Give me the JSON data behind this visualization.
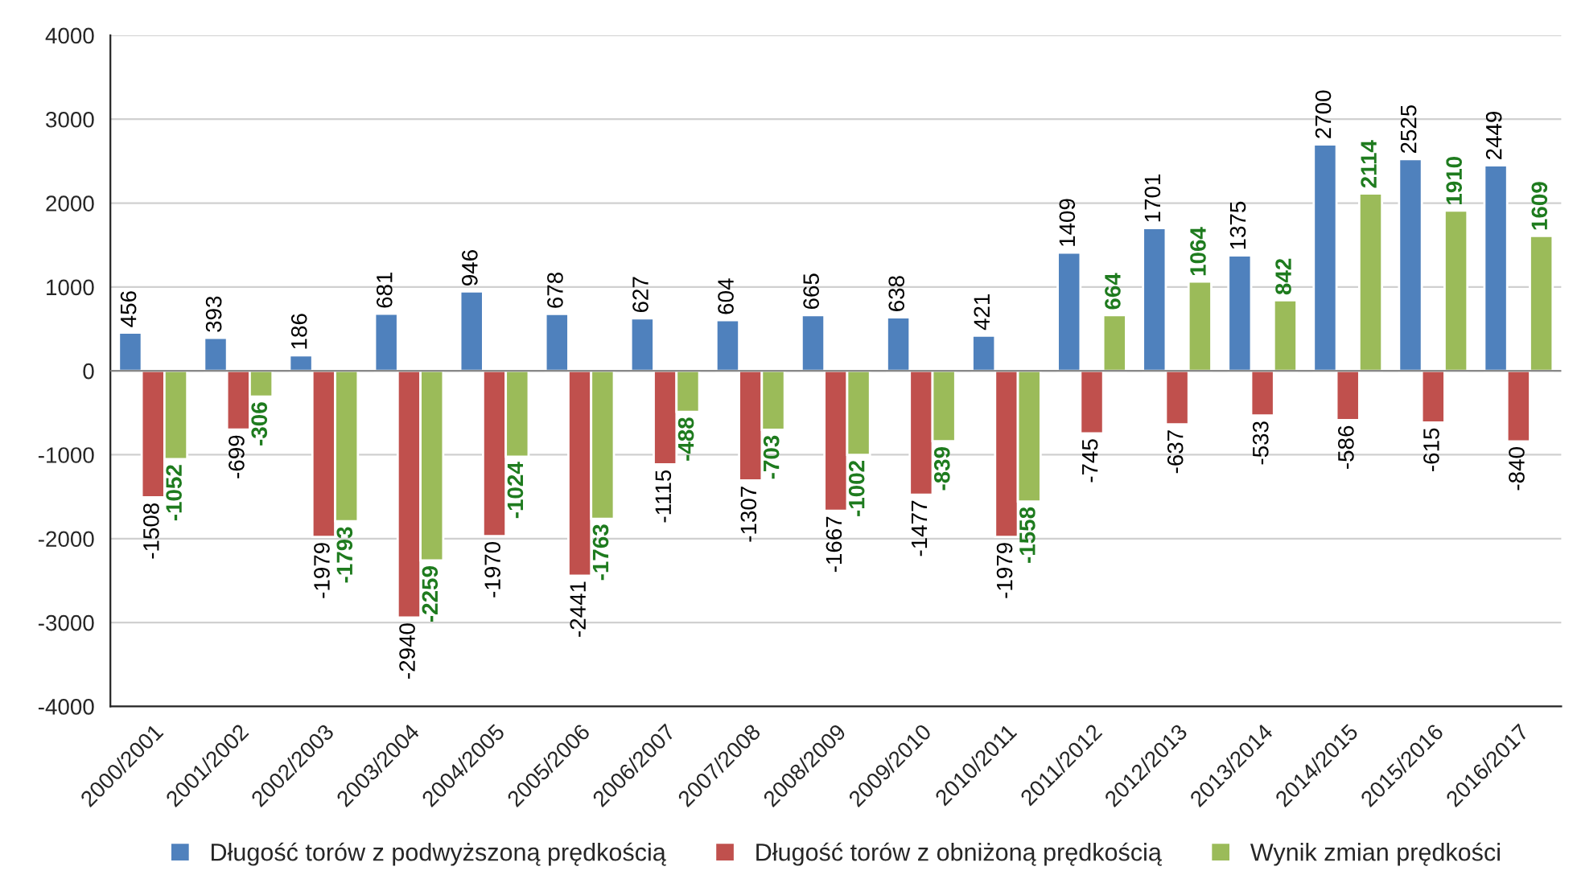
{
  "chart_data": {
    "type": "bar",
    "categories": [
      "2000/2001",
      "2001/2002",
      "2002/2003",
      "2003/2004",
      "2004/2005",
      "2005/2006",
      "2006/2007",
      "2007/2008",
      "2008/2009",
      "2009/2010",
      "2010/2011",
      "2011/2012",
      "2012/2013",
      "2013/2014",
      "2014/2015",
      "2015/2016",
      "2016/2017"
    ],
    "series": [
      {
        "name": "Długość torów z podwyższoną prędkością",
        "color": "#4f81bd",
        "values": [
          456,
          393,
          186,
          681,
          946,
          678,
          627,
          604,
          665,
          638,
          421,
          1409,
          1701,
          1375,
          2700,
          2525,
          2449
        ]
      },
      {
        "name": "Długość torów z obniżoną prędkością",
        "color": "#c0504d",
        "values": [
          -1508,
          -699,
          -1979,
          -2940,
          -1970,
          -2441,
          -1115,
          -1307,
          -1667,
          -1477,
          -1979,
          -745,
          -637,
          -533,
          -586,
          -615,
          -840
        ]
      },
      {
        "name": "Wynik zmian prędkości",
        "color": "#9bbb59",
        "values": [
          -1052,
          -306,
          -1793,
          -2259,
          -1024,
          -1763,
          -488,
          -703,
          -1002,
          -839,
          -1558,
          664,
          1064,
          842,
          2114,
          1910,
          1609
        ]
      }
    ],
    "ylim": [
      -4000,
      4000
    ],
    "yticks": [
      -4000,
      -3000,
      -2000,
      -1000,
      0,
      1000,
      2000,
      3000,
      4000
    ],
    "grid": "y",
    "legend": "bottom",
    "data_labels": true
  }
}
